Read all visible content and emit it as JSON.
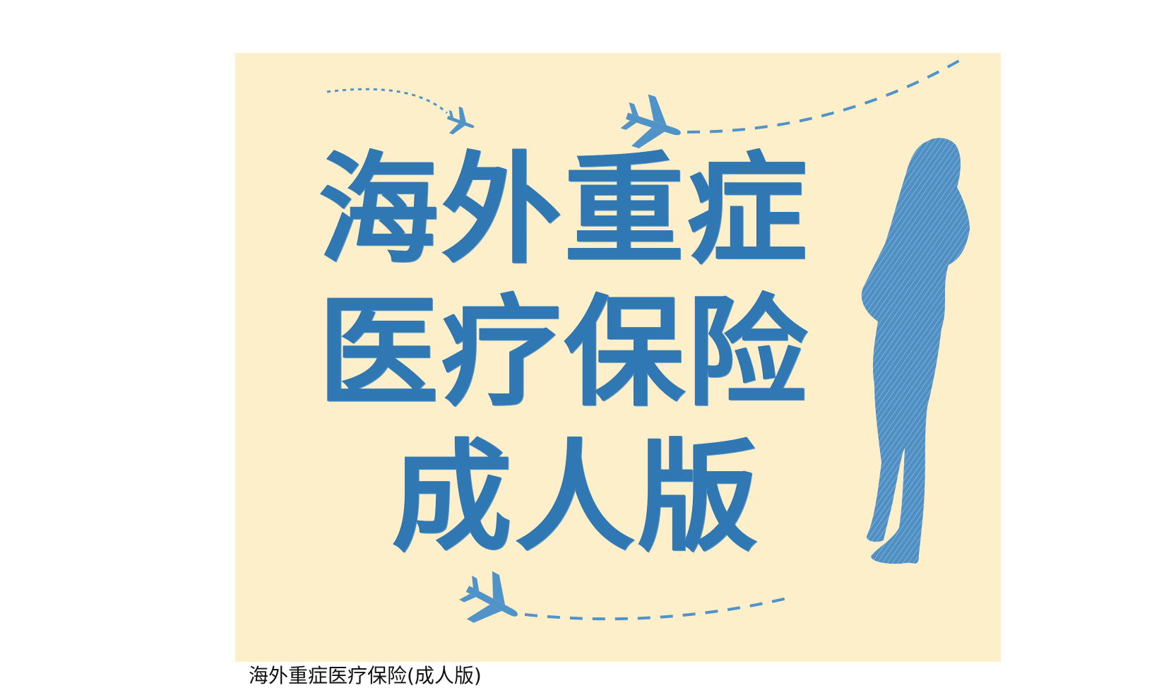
{
  "banner": {
    "title_line1": "海外重症",
    "title_line2": "医疗保险",
    "title_line3": "成人版",
    "background_color": "#fdefc9",
    "text_color": "#2f78b3",
    "decorations": [
      "airplane-icon",
      "dashed-flight-path",
      "woman-silhouette"
    ]
  },
  "caption": "海外重症医疗保险(成人版)"
}
